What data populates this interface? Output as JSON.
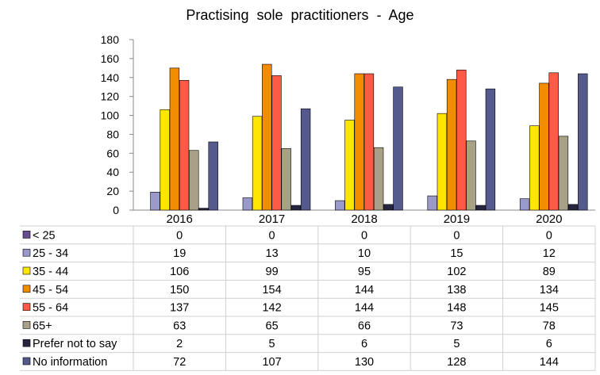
{
  "chart_data": {
    "type": "bar",
    "title": "Practising  sole  practitioners  -  Age",
    "xlabel": "",
    "ylabel": "",
    "ylim": [
      0,
      180
    ],
    "yticks": [
      0,
      20,
      40,
      60,
      80,
      100,
      120,
      140,
      160,
      180
    ],
    "categories": [
      "2016",
      "2017",
      "2018",
      "2019",
      "2020"
    ],
    "grid": false,
    "legend": "data-table",
    "series": [
      {
        "name": "< 25",
        "color": "#6a4c93",
        "values": [
          0,
          0,
          0,
          0,
          0
        ]
      },
      {
        "name": "25 - 34",
        "color": "#9999cc",
        "values": [
          19,
          13,
          10,
          15,
          12
        ]
      },
      {
        "name": "35 - 44",
        "color": "#ffe600",
        "values": [
          106,
          99,
          95,
          102,
          89
        ]
      },
      {
        "name": "45 - 54",
        "color": "#f28c00",
        "values": [
          150,
          154,
          144,
          138,
          134
        ]
      },
      {
        "name": "55 - 64",
        "color": "#ff5a45",
        "values": [
          137,
          142,
          144,
          148,
          145
        ]
      },
      {
        "name": "65+",
        "color": "#a9a088",
        "values": [
          63,
          65,
          66,
          73,
          78
        ]
      },
      {
        "name": "Prefer not to say",
        "color": "#262640",
        "values": [
          2,
          5,
          6,
          5,
          6
        ]
      },
      {
        "name": "No information",
        "color": "#545a8c",
        "values": [
          72,
          107,
          130,
          128,
          144
        ]
      }
    ]
  }
}
